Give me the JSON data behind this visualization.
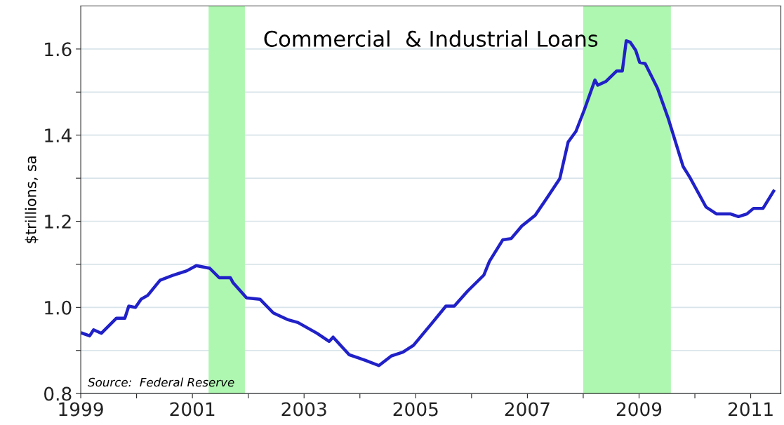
{
  "chart_data": {
    "type": "line",
    "title": "Commercial  & Industrial Loans",
    "ylabel": "$trillions, sa",
    "annotations": [
      "Source:  Federal Reserve"
    ],
    "x": [
      1999.03,
      1999.16,
      1999.23,
      1999.37,
      1999.64,
      1999.79,
      1999.86,
      1999.98,
      2000.08,
      2000.2,
      2000.42,
      2000.66,
      2000.9,
      2001.07,
      2001.31,
      2001.48,
      2001.68,
      2001.73,
      2001.97,
      2002.21,
      2002.45,
      2002.7,
      2002.89,
      2003.23,
      2003.45,
      2003.52,
      2003.81,
      2004.1,
      2004.34,
      2004.56,
      2004.77,
      2004.96,
      2005.3,
      2005.54,
      2005.69,
      2005.93,
      2006.22,
      2006.32,
      2006.56,
      2006.71,
      2006.9,
      2007.14,
      2007.34,
      2007.58,
      2007.73,
      2007.87,
      2008.02,
      2008.21,
      2008.26,
      2008.41,
      2008.6,
      2008.7,
      2008.77,
      2008.84,
      2008.94,
      2009.01,
      2009.11,
      2009.33,
      2009.52,
      2009.79,
      2009.91,
      2010.2,
      2010.39,
      2010.64,
      2010.78,
      2010.93,
      2011.05,
      2011.22,
      2011.41
    ],
    "series": [
      {
        "color": "#2121c8",
        "values": [
          0.94,
          0.934,
          0.948,
          0.94,
          0.975,
          0.975,
          1.003,
          1.0,
          1.019,
          1.028,
          1.063,
          1.075,
          1.085,
          1.097,
          1.091,
          1.069,
          1.069,
          1.057,
          1.022,
          1.019,
          0.987,
          0.972,
          0.965,
          0.94,
          0.921,
          0.931,
          0.89,
          0.877,
          0.865,
          0.887,
          0.896,
          0.912,
          0.965,
          1.003,
          1.003,
          1.038,
          1.075,
          1.107,
          1.157,
          1.16,
          1.189,
          1.214,
          1.252,
          1.299,
          1.384,
          1.409,
          1.459,
          1.528,
          1.516,
          1.525,
          1.549,
          1.549,
          1.619,
          1.616,
          1.597,
          1.569,
          1.566,
          1.509,
          1.44,
          1.327,
          1.302,
          1.233,
          1.217,
          1.217,
          1.211,
          1.217,
          1.23,
          1.23,
          1.27
        ]
      }
    ],
    "xlim": [
      1999,
      2011.54
    ],
    "ylim": [
      0.8,
      1.7
    ],
    "xticks": [
      1999,
      {
        "value": 2000,
        "label": null
      },
      2001,
      {
        "value": 2002,
        "label": null
      },
      2003,
      {
        "value": 2004,
        "label": null
      },
      2005,
      {
        "value": 2006,
        "label": null
      },
      2007,
      {
        "value": 2008,
        "label": null
      },
      2009,
      {
        "value": 2010,
        "label": null
      },
      2011
    ],
    "yticks": [
      {
        "value": 0.8,
        "label": "0.8"
      },
      {
        "value": 0.9,
        "label": null
      },
      {
        "value": 1.0,
        "label": "1.0"
      },
      {
        "value": 1.1,
        "label": null
      },
      {
        "value": 1.2,
        "label": "1.2"
      },
      {
        "value": 1.3,
        "label": null
      },
      {
        "value": 1.4,
        "label": "1.4"
      },
      {
        "value": 1.5,
        "label": null
      },
      {
        "value": 1.6,
        "label": "1.6"
      }
    ],
    "bands": [
      {
        "axis": "x",
        "from": 2001.29,
        "to": 2001.94,
        "color": "#aef7b0"
      },
      {
        "axis": "x",
        "from": 2008.0,
        "to": 2009.57,
        "color": "#aef7b0"
      }
    ],
    "grid": "y",
    "line_style": "solid",
    "marker": "none"
  }
}
